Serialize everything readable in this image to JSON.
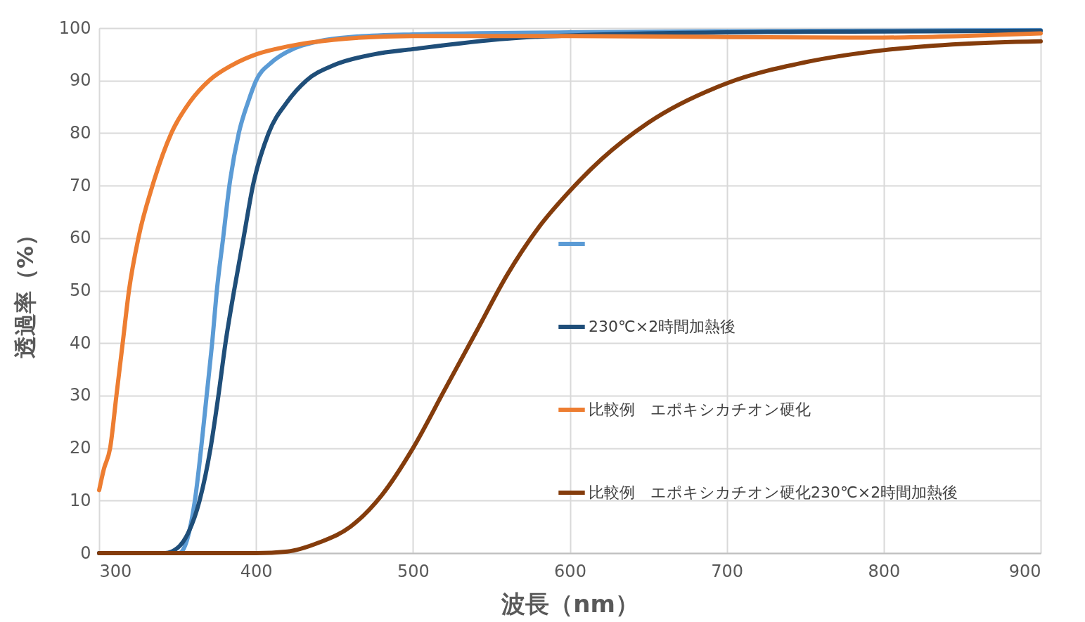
{
  "chart_data": {
    "type": "line",
    "xlabel": "波長（nm）",
    "ylabel": "透過率（%）",
    "xlim": [
      300,
      900
    ],
    "xticks": [
      300,
      400,
      500,
      600,
      700,
      800,
      900
    ],
    "ylim": [
      0,
      100
    ],
    "yticks": [
      0,
      10,
      20,
      30,
      40,
      50,
      60,
      70,
      80,
      90,
      100
    ],
    "grid": true,
    "legend": "right",
    "marker": "none",
    "line_style": "solid",
    "series": [
      {
        "color": "#5b9bd5",
        "x": [
          300,
          340,
          351,
          361,
          365,
          368.5,
          372,
          375,
          379,
          383,
          389,
          395,
          400,
          410,
          420,
          440,
          460,
          500,
          600,
          700,
          800,
          900
        ],
        "values": [
          0,
          0,
          0,
          10,
          20,
          30,
          40,
          50,
          60,
          70,
          80,
          86,
          90,
          93.5,
          95.5,
          97.5,
          98.3,
          98.8,
          99.2,
          99.4,
          99.5,
          99.6
        ]
      },
      {
        "name": "230℃×2時間加熱後",
        "color": "#1f4e79",
        "x": [
          300,
          342,
          350,
          357,
          364,
          371,
          376,
          380.5,
          386,
          392,
          398,
          408,
          420,
          432,
          450,
          475,
          500,
          560,
          650,
          750,
          900
        ],
        "values": [
          0,
          0,
          1,
          4,
          10,
          20,
          30,
          40,
          50,
          60,
          70,
          80,
          86,
          90,
          93,
          95,
          96,
          98,
          99,
          99.3,
          99.5
        ]
      },
      {
        "name": "比較例　エポキシカチオン硬化",
        "color": "#ed7d31",
        "x": [
          300,
          303,
          307,
          311,
          315,
          319,
          325,
          334,
          346,
          358,
          370,
          385,
          400,
          420,
          450,
          500,
          600,
          700,
          800,
          850,
          900
        ],
        "values": [
          12,
          16,
          20,
          30,
          40,
          50,
          60,
          70,
          80,
          86,
          90,
          93,
          95,
          96.5,
          97.8,
          98.5,
          98.5,
          98.3,
          98.2,
          98.5,
          99
        ]
      },
      {
        "name": "比較例　エポキシカチオン硬化230℃×2時間加熱後",
        "color": "#843c0c",
        "x": [
          300,
          400,
          420,
          440,
          460,
          480,
          500,
          520,
          540,
          560,
          580,
          600,
          620,
          650,
          700,
          750,
          800,
          850,
          900
        ],
        "values": [
          0,
          0,
          0.3,
          2,
          5,
          11,
          20,
          31,
          42,
          53,
          62,
          69,
          75,
          82,
          89.5,
          93.5,
          95.8,
          97,
          97.5
        ]
      }
    ]
  }
}
